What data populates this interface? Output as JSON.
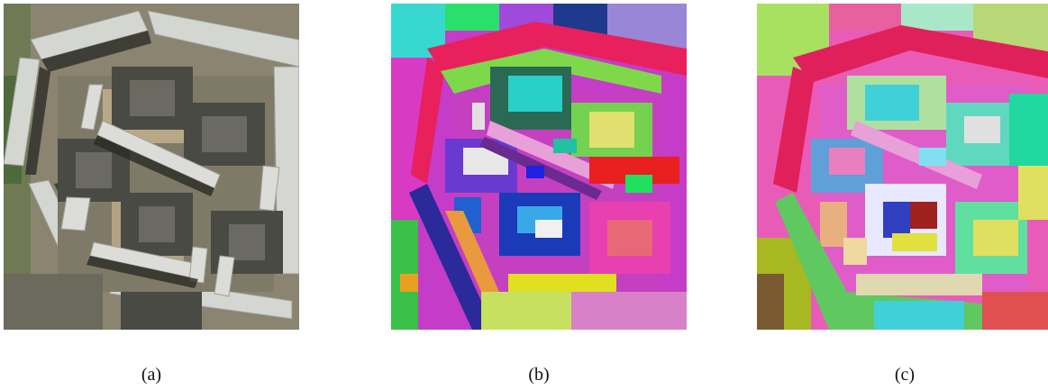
{
  "figure": {
    "panels": [
      {
        "id": "a",
        "caption": "(a)",
        "content": "aerial-photo"
      },
      {
        "id": "b",
        "caption": "(b)",
        "content": "segmentation-map"
      },
      {
        "id": "c",
        "caption": "(c)",
        "content": "segmentation-map"
      }
    ]
  },
  "colors": {
    "photo_ground": "#8a8470",
    "photo_roof": "#cfd0cc",
    "photo_shadow": "#2a2a26",
    "photo_sand": "#b8a888",
    "seg_b_base": "#c43cc8",
    "seg_b_ring": "#e8205c",
    "seg_c_base": "#e85cb8",
    "seg_c_ring": "#e0205a"
  }
}
